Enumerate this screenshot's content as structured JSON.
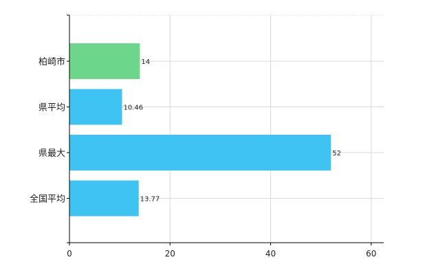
{
  "chart_data": {
    "type": "bar",
    "orientation": "horizontal",
    "title": "",
    "xlabel": "",
    "ylabel": "",
    "categories": [
      "柏崎市",
      "県平均",
      "県最大",
      "全国平均"
    ],
    "values": [
      14,
      10.46,
      52,
      13.77
    ],
    "value_labels": [
      "14",
      "10.46",
      "52",
      "13.77"
    ],
    "bar_colors": [
      "#6cd68a",
      "#3ec3f3",
      "#3ec3f3",
      "#3ec3f3"
    ],
    "xlim": [
      0,
      62.5
    ],
    "x_ticks": [
      0,
      20,
      40,
      60
    ],
    "x_tick_labels": [
      "0",
      "20",
      "40",
      "60"
    ],
    "grid": true,
    "legend": "none"
  }
}
